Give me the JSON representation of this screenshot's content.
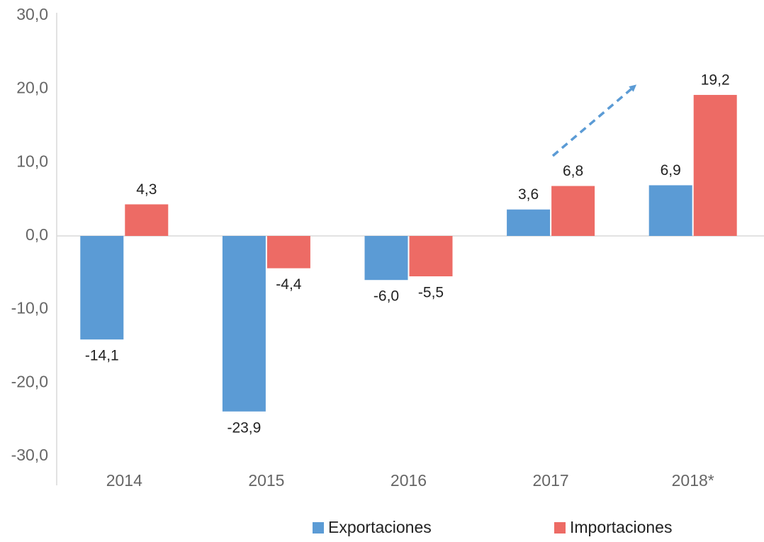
{
  "chart_data": {
    "type": "bar",
    "categories": [
      "2014",
      "2015",
      "2016",
      "2017",
      "2018*"
    ],
    "series": [
      {
        "name": "Exportaciones",
        "color": "#5b9bd5",
        "values": [
          -14.1,
          -23.9,
          -6.0,
          3.6,
          6.9
        ],
        "value_labels": [
          "-14,1",
          "-23,9",
          "-6,0",
          "3,6",
          "6,9"
        ]
      },
      {
        "name": "Importaciones",
        "color": "#ed6b65",
        "values": [
          4.3,
          -4.4,
          -5.5,
          6.8,
          19.2
        ],
        "value_labels": [
          "4,3",
          "-4,4",
          "-5,5",
          "6,8",
          "19,2"
        ]
      }
    ],
    "ylim": [
      -30,
      30
    ],
    "yticks": [
      {
        "value": -30,
        "label": "-30,0"
      },
      {
        "value": -20,
        "label": "-20,0"
      },
      {
        "value": -10,
        "label": "-10,0"
      },
      {
        "value": 0,
        "label": "0,0"
      },
      {
        "value": 10,
        "label": "10,0"
      },
      {
        "value": 20,
        "label": "20,0"
      },
      {
        "value": 30,
        "label": "30,0"
      }
    ],
    "legend": "bottom"
  }
}
